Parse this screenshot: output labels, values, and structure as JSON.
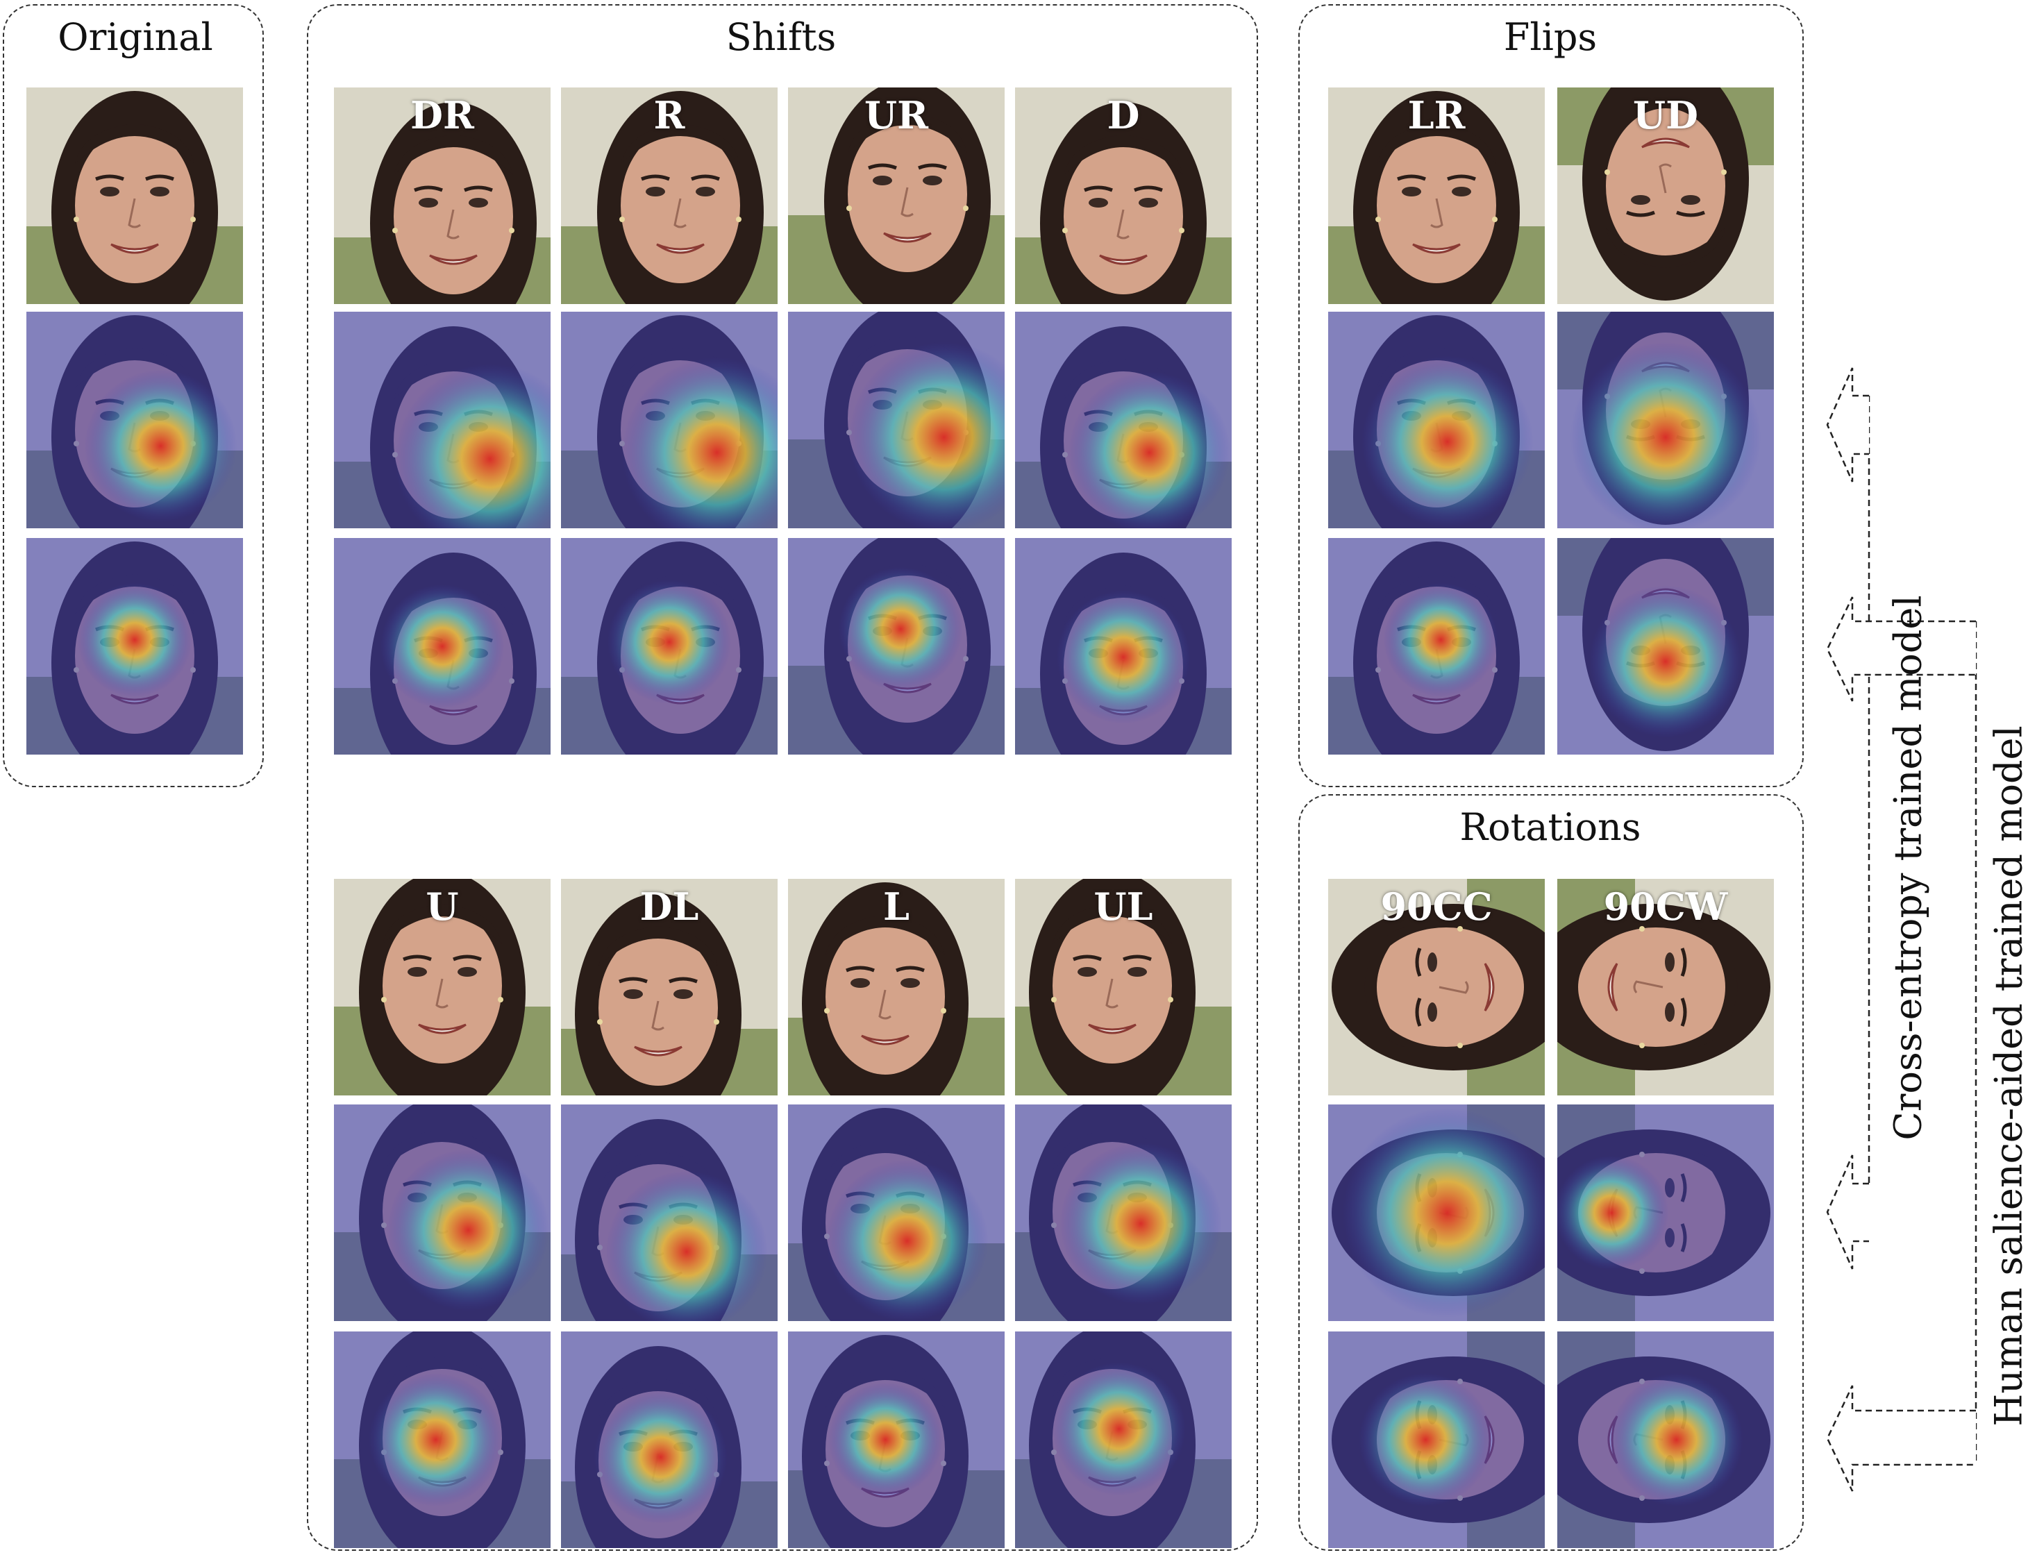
{
  "panels": {
    "original": {
      "title": "Original"
    },
    "shifts": {
      "title": "Shifts"
    },
    "flips": {
      "title": "Flips"
    },
    "rotations": {
      "title": "Rotations"
    }
  },
  "tile_labels": {
    "shift_dr": "DR",
    "shift_r": "R",
    "shift_ur": "UR",
    "shift_d": "D",
    "shift_u": "U",
    "shift_dl": "DL",
    "shift_l": "L",
    "shift_ul": "UL",
    "flip_lr": "LR",
    "flip_ud": "UD",
    "rot_90cc": "90CC",
    "rot_90cw": "90CW"
  },
  "legend": {
    "cross_entropy": "Cross-entropy trained model",
    "human_salience": "Human salience-aided trained model"
  },
  "row_types": [
    "face image",
    "cross-entropy model heatmap",
    "human salience-aided model heatmap"
  ],
  "colors": {
    "heatmap_low": "#3c3cb4",
    "heatmap_mid": "#4fd6c0",
    "heatmap_high": "#e02a1e",
    "border": "#333333",
    "background_sky": "#d9d6c6",
    "background_grass": "#8c9a66",
    "hair": "#2a1d18",
    "skin": "#d4a38a"
  }
}
